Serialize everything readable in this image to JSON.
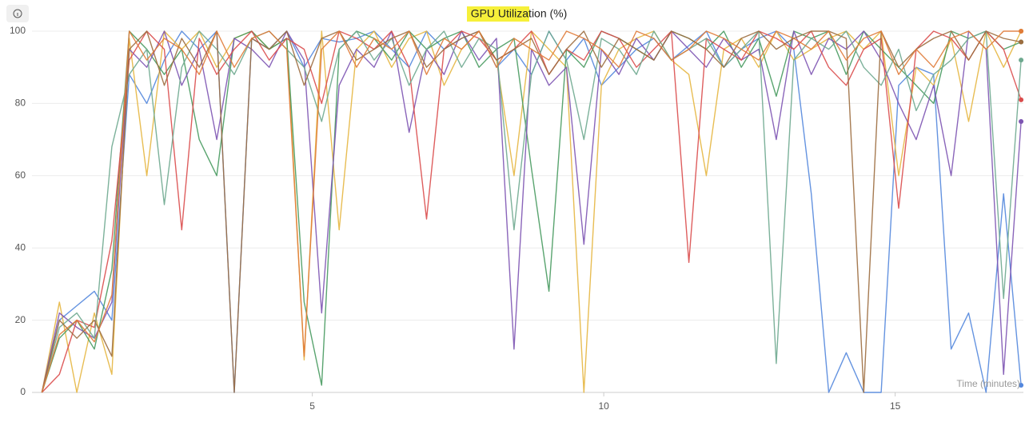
{
  "chart_data": {
    "type": "line",
    "title": "GPU Utilization (%)",
    "xlabel": "Time (minutes)",
    "x": [
      0.36,
      0.66,
      0.96,
      1.26,
      1.56,
      1.86,
      2.16,
      2.46,
      2.76,
      3.06,
      3.36,
      3.66,
      3.96,
      4.26,
      4.56,
      4.86,
      5.16,
      5.46,
      5.76,
      6.06,
      6.36,
      6.66,
      6.96,
      7.26,
      7.56,
      7.86,
      8.16,
      8.46,
      8.76,
      9.06,
      9.36,
      9.66,
      9.96,
      10.26,
      10.56,
      10.86,
      11.16,
      11.46,
      11.76,
      12.06,
      12.36,
      12.66,
      12.96,
      13.26,
      13.56,
      13.86,
      14.16,
      14.46,
      14.76,
      15.06,
      15.36,
      15.66,
      15.96,
      16.26,
      16.56,
      16.86,
      17.16
    ],
    "series": [
      {
        "color": "#5387dd",
        "values": [
          0,
          20,
          24,
          28,
          20,
          88,
          80,
          92,
          100,
          95,
          100,
          0,
          98,
          95,
          100,
          90,
          98,
          97,
          98,
          100,
          95,
          90,
          100,
          95,
          98,
          100,
          90,
          95,
          88,
          100,
          92,
          98,
          85,
          90,
          95,
          98,
          92,
          96,
          100,
          90,
          95,
          98,
          100,
          95,
          55,
          0,
          11,
          0,
          0,
          85,
          90,
          88,
          12,
          22,
          0,
          55,
          2
        ]
      },
      {
        "color": "#e5b640",
        "values": [
          0,
          25,
          0,
          22,
          5,
          98,
          60,
          100,
          95,
          100,
          90,
          98,
          100,
          95,
          98,
          9,
          100,
          45,
          95,
          100,
          90,
          98,
          100,
          85,
          95,
          100,
          92,
          60,
          100,
          95,
          90,
          0,
          85,
          95,
          98,
          100,
          92,
          88,
          60,
          95,
          98,
          90,
          100,
          92,
          95,
          98,
          100,
          95,
          100,
          60,
          90,
          85,
          98,
          75,
          100,
          90,
          100
        ]
      },
      {
        "color": "#479a5f",
        "values": [
          0,
          15,
          20,
          12,
          34,
          100,
          95,
          88,
          95,
          70,
          60,
          98,
          100,
          95,
          98,
          25,
          2,
          95,
          100,
          98,
          92,
          100,
          95,
          98,
          100,
          90,
          95,
          98,
          62,
          28,
          95,
          90,
          100,
          98,
          95,
          92,
          100,
          98,
          95,
          100,
          90,
          98,
          82,
          100,
          98,
          100,
          88,
          100,
          95,
          90,
          85,
          80,
          100,
          98,
          100,
          95,
          97
        ]
      },
      {
        "color": "#7d54b2",
        "values": [
          0,
          22,
          18,
          15,
          25,
          95,
          90,
          100,
          85,
          95,
          70,
          98,
          95,
          90,
          100,
          92,
          22,
          85,
          95,
          90,
          100,
          72,
          95,
          88,
          100,
          92,
          98,
          12,
          95,
          85,
          90,
          41,
          95,
          88,
          98,
          92,
          100,
          95,
          90,
          98,
          92,
          95,
          70,
          100,
          88,
          98,
          95,
          100,
          92,
          80,
          70,
          85,
          60,
          100,
          95,
          5,
          75
        ]
      },
      {
        "color": "#da4c4c",
        "values": [
          0,
          5,
          20,
          18,
          42,
          92,
          100,
          95,
          45,
          98,
          88,
          95,
          100,
          92,
          98,
          95,
          80,
          100,
          98,
          95,
          100,
          90,
          48,
          95,
          100,
          98,
          92,
          95,
          100,
          88,
          95,
          92,
          100,
          98,
          90,
          95,
          100,
          36,
          98,
          95,
          92,
          100,
          98,
          95,
          100,
          90,
          85,
          95,
          98,
          51,
          95,
          100,
          98,
          92,
          100,
          95,
          81
        ]
      },
      {
        "color": "#6ea98f",
        "values": [
          0,
          18,
          22,
          15,
          68,
          88,
          95,
          52,
          90,
          100,
          95,
          88,
          98,
          100,
          95,
          90,
          75,
          95,
          100,
          92,
          98,
          85,
          95,
          100,
          90,
          98,
          95,
          45,
          88,
          100,
          92,
          70,
          98,
          95,
          88,
          100,
          92,
          95,
          98,
          90,
          95,
          100,
          8,
          92,
          98,
          95,
          100,
          90,
          85,
          95,
          78,
          88,
          92,
          98,
          100,
          26,
          92
        ]
      },
      {
        "color": "#9c6d3f",
        "values": [
          0,
          20,
          15,
          20,
          10,
          95,
          100,
          85,
          98,
          90,
          100,
          0,
          98,
          95,
          100,
          85,
          98,
          100,
          92,
          95,
          98,
          100,
          90,
          95,
          98,
          100,
          92,
          95,
          98,
          88,
          95,
          100,
          90,
          98,
          95,
          92,
          100,
          98,
          95,
          90,
          98,
          100,
          95,
          98,
          100,
          100,
          98,
          0,
          100,
          90,
          95,
          98,
          100,
          92,
          100,
          98,
          97
        ]
      },
      {
        "color": "#e07b39",
        "values": [
          0,
          16,
          20,
          14,
          27,
          100,
          92,
          98,
          95,
          88,
          100,
          90,
          98,
          100,
          95,
          10,
          95,
          100,
          90,
          98,
          95,
          100,
          88,
          98,
          95,
          100,
          90,
          98,
          95,
          92,
          100,
          98,
          95,
          90,
          100,
          98,
          92,
          95,
          100,
          98,
          95,
          92,
          100,
          98,
          95,
          100,
          92,
          98,
          100,
          88,
          95,
          90,
          98,
          100,
          95,
          100,
          100
        ]
      }
    ],
    "xlim": [
      0.19,
      17.2
    ],
    "ylim": [
      0,
      100
    ],
    "xticks": [
      5,
      10,
      15
    ],
    "yticks": [
      0,
      20,
      40,
      60,
      80,
      100
    ],
    "grid": true
  }
}
